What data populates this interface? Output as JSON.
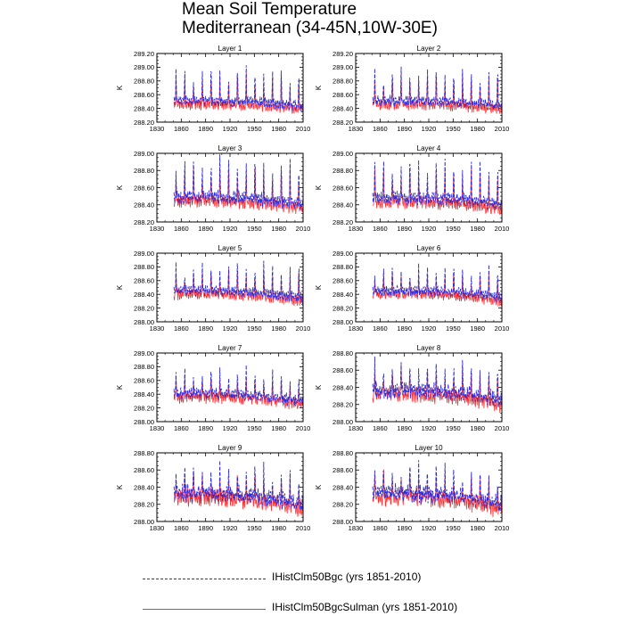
{
  "title": {
    "line1": "Mean Soil Temperature",
    "line2": "Mediterranean (34-45N,10W-30E)"
  },
  "colors": {
    "bgc": "#2b2bd9",
    "sulman": "#ff3030",
    "axis": "#000000"
  },
  "legend": [
    {
      "label": "IHistClm50Bgc (yrs 1851-2010)",
      "style": "dashed",
      "color": "#2b2bd9"
    },
    {
      "label": "IHistClm50BgcSulman (yrs 1851-2010)",
      "style": "solid",
      "color": "#ff3030"
    }
  ],
  "chart_data": [
    {
      "type": "line",
      "title": "Layer 1",
      "xlabel": "",
      "ylabel": "K",
      "xlim": [
        1830,
        2010
      ],
      "ylim": [
        288.2,
        289.2
      ],
      "xticks": [
        1830,
        1860,
        1890,
        1920,
        1950,
        1980,
        2010
      ],
      "yticks": [
        "288.20",
        "288.40",
        "288.60",
        "288.80",
        "289.00",
        "289.20"
      ],
      "base": 288.48,
      "amp": 0.5,
      "noise": 0.04,
      "trend": -0.08,
      "series": [
        {
          "name": "IHistClm50Bgc (yrs 1851-2010)",
          "x_range": [
            1851,
            2010
          ],
          "style": "dashed",
          "color": "#2b2bd9"
        },
        {
          "name": "IHistClm50BgcSulman (yrs 1851-2010)",
          "x_range": [
            1851,
            2010
          ],
          "style": "solid",
          "color": "#ff3030"
        }
      ]
    },
    {
      "type": "line",
      "title": "Layer 2",
      "xlabel": "",
      "ylabel": "K",
      "xlim": [
        1830,
        2010
      ],
      "ylim": [
        288.2,
        289.2
      ],
      "xticks": [
        1830,
        1860,
        1890,
        1920,
        1950,
        1980,
        2010
      ],
      "yticks": [
        "288.20",
        "288.40",
        "288.60",
        "288.80",
        "289.00",
        "289.20"
      ],
      "base": 288.48,
      "amp": 0.5,
      "noise": 0.04,
      "trend": -0.08,
      "series": [
        {
          "name": "IHistClm50Bgc (yrs 1851-2010)",
          "x_range": [
            1851,
            2010
          ],
          "style": "dashed",
          "color": "#2b2bd9"
        },
        {
          "name": "IHistClm50BgcSulman (yrs 1851-2010)",
          "x_range": [
            1851,
            2010
          ],
          "style": "solid",
          "color": "#ff3030"
        }
      ]
    },
    {
      "type": "line",
      "title": "Layer 3",
      "xlabel": "",
      "ylabel": "K",
      "xlim": [
        1830,
        2010
      ],
      "ylim": [
        288.2,
        289.0
      ],
      "xticks": [
        1830,
        1860,
        1890,
        1920,
        1950,
        1980,
        2010
      ],
      "yticks": [
        "288.20",
        "288.40",
        "288.60",
        "288.80",
        "289.00"
      ],
      "base": 288.46,
      "amp": 0.48,
      "noise": 0.04,
      "trend": -0.08,
      "series": [
        {
          "name": "IHistClm50Bgc (yrs 1851-2010)",
          "x_range": [
            1851,
            2010
          ],
          "style": "dashed",
          "color": "#2b2bd9"
        },
        {
          "name": "IHistClm50BgcSulman (yrs 1851-2010)",
          "x_range": [
            1851,
            2010
          ],
          "style": "solid",
          "color": "#ff3030"
        }
      ]
    },
    {
      "type": "line",
      "title": "Layer 4",
      "xlabel": "",
      "ylabel": "K",
      "xlim": [
        1830,
        2010
      ],
      "ylim": [
        288.2,
        289.0
      ],
      "xticks": [
        1830,
        1860,
        1890,
        1920,
        1950,
        1980,
        2010
      ],
      "yticks": [
        "288.20",
        "288.40",
        "288.60",
        "288.80",
        "289.00"
      ],
      "base": 288.45,
      "amp": 0.46,
      "noise": 0.04,
      "trend": -0.08,
      "series": [
        {
          "name": "IHistClm50Bgc (yrs 1851-2010)",
          "x_range": [
            1851,
            2010
          ],
          "style": "dashed",
          "color": "#2b2bd9"
        },
        {
          "name": "IHistClm50BgcSulman (yrs 1851-2010)",
          "x_range": [
            1851,
            2010
          ],
          "style": "solid",
          "color": "#ff3030"
        }
      ]
    },
    {
      "type": "line",
      "title": "Layer 5",
      "xlabel": "",
      "ylabel": "K",
      "xlim": [
        1830,
        2010
      ],
      "ylim": [
        288.0,
        289.0
      ],
      "xticks": [
        1830,
        1860,
        1890,
        1920,
        1950,
        1980,
        2010
      ],
      "yticks": [
        "288.00",
        "288.20",
        "288.40",
        "288.60",
        "288.80",
        "289.00"
      ],
      "base": 288.42,
      "amp": 0.42,
      "noise": 0.04,
      "trend": -0.1,
      "series": [
        {
          "name": "IHistClm50Bgc (yrs 1851-2010)",
          "x_range": [
            1851,
            2010
          ],
          "style": "dashed",
          "color": "#2b2bd9"
        },
        {
          "name": "IHistClm50BgcSulman (yrs 1851-2010)",
          "x_range": [
            1851,
            2010
          ],
          "style": "solid",
          "color": "#ff3030"
        }
      ]
    },
    {
      "type": "line",
      "title": "Layer 6",
      "xlabel": "",
      "ylabel": "K",
      "xlim": [
        1830,
        2010
      ],
      "ylim": [
        288.0,
        289.0
      ],
      "xticks": [
        1830,
        1860,
        1890,
        1920,
        1950,
        1980,
        2010
      ],
      "yticks": [
        "288.00",
        "288.20",
        "288.40",
        "288.60",
        "288.80",
        "289.00"
      ],
      "base": 288.42,
      "amp": 0.38,
      "noise": 0.04,
      "trend": -0.1,
      "series": [
        {
          "name": "IHistClm50Bgc (yrs 1851-2010)",
          "x_range": [
            1851,
            2010
          ],
          "style": "dashed",
          "color": "#2b2bd9"
        },
        {
          "name": "IHistClm50BgcSulman (yrs 1851-2010)",
          "x_range": [
            1851,
            2010
          ],
          "style": "solid",
          "color": "#ff3030"
        }
      ]
    },
    {
      "type": "line",
      "title": "Layer 7",
      "xlabel": "",
      "ylabel": "K",
      "xlim": [
        1830,
        2010
      ],
      "ylim": [
        288.0,
        289.0
      ],
      "xticks": [
        1830,
        1860,
        1890,
        1920,
        1950,
        1980,
        2010
      ],
      "yticks": [
        "288.00",
        "288.20",
        "288.40",
        "288.60",
        "288.80",
        "289.00"
      ],
      "base": 288.38,
      "amp": 0.36,
      "noise": 0.05,
      "trend": -0.12,
      "series": [
        {
          "name": "IHistClm50Bgc (yrs 1851-2010)",
          "x_range": [
            1851,
            2010
          ],
          "style": "dashed",
          "color": "#2b2bd9"
        },
        {
          "name": "IHistClm50BgcSulman (yrs 1851-2010)",
          "x_range": [
            1851,
            2010
          ],
          "style": "solid",
          "color": "#ff3030"
        }
      ]
    },
    {
      "type": "line",
      "title": "Layer 8",
      "xlabel": "",
      "ylabel": "K",
      "xlim": [
        1830,
        2010
      ],
      "ylim": [
        288.0,
        288.8
      ],
      "xticks": [
        1830,
        1860,
        1890,
        1920,
        1950,
        1980,
        2010
      ],
      "yticks": [
        "288.00",
        "288.20",
        "288.40",
        "288.60",
        "288.80"
      ],
      "base": 288.34,
      "amp": 0.35,
      "noise": 0.06,
      "trend": -0.12,
      "series": [
        {
          "name": "IHistClm50Bgc (yrs 1851-2010)",
          "x_range": [
            1851,
            2010
          ],
          "style": "dashed",
          "color": "#2b2bd9"
        },
        {
          "name": "IHistClm50BgcSulman (yrs 1851-2010)",
          "x_range": [
            1851,
            2010
          ],
          "style": "solid",
          "color": "#ff3030"
        }
      ]
    },
    {
      "type": "line",
      "title": "Layer 9",
      "xlabel": "",
      "ylabel": "K",
      "xlim": [
        1830,
        2010
      ],
      "ylim": [
        288.0,
        288.8
      ],
      "xticks": [
        1830,
        1860,
        1890,
        1920,
        1950,
        1980,
        2010
      ],
      "yticks": [
        "288.00",
        "288.20",
        "288.40",
        "288.60",
        "288.80"
      ],
      "base": 288.3,
      "amp": 0.34,
      "noise": 0.07,
      "trend": -0.14,
      "series": [
        {
          "name": "IHistClm50Bgc (yrs 1851-2010)",
          "x_range": [
            1851,
            2010
          ],
          "style": "dashed",
          "color": "#2b2bd9"
        },
        {
          "name": "IHistClm50BgcSulman (yrs 1851-2010)",
          "x_range": [
            1851,
            2010
          ],
          "style": "solid",
          "color": "#ff3030"
        }
      ]
    },
    {
      "type": "line",
      "title": "Layer 10",
      "xlabel": "",
      "ylabel": "K",
      "xlim": [
        1830,
        2010
      ],
      "ylim": [
        288.0,
        288.8
      ],
      "xticks": [
        1830,
        1860,
        1890,
        1920,
        1950,
        1980,
        2010
      ],
      "yticks": [
        "288.00",
        "288.20",
        "288.40",
        "288.60",
        "288.80"
      ],
      "base": 288.3,
      "amp": 0.33,
      "noise": 0.07,
      "trend": -0.14,
      "series": [
        {
          "name": "IHistClm50Bgc (yrs 1851-2010)",
          "x_range": [
            1851,
            2010
          ],
          "style": "dashed",
          "color": "#2b2bd9"
        },
        {
          "name": "IHistClm50BgcSulman (yrs 1851-2010)",
          "x_range": [
            1851,
            2010
          ],
          "style": "solid",
          "color": "#ff3030"
        }
      ]
    }
  ]
}
